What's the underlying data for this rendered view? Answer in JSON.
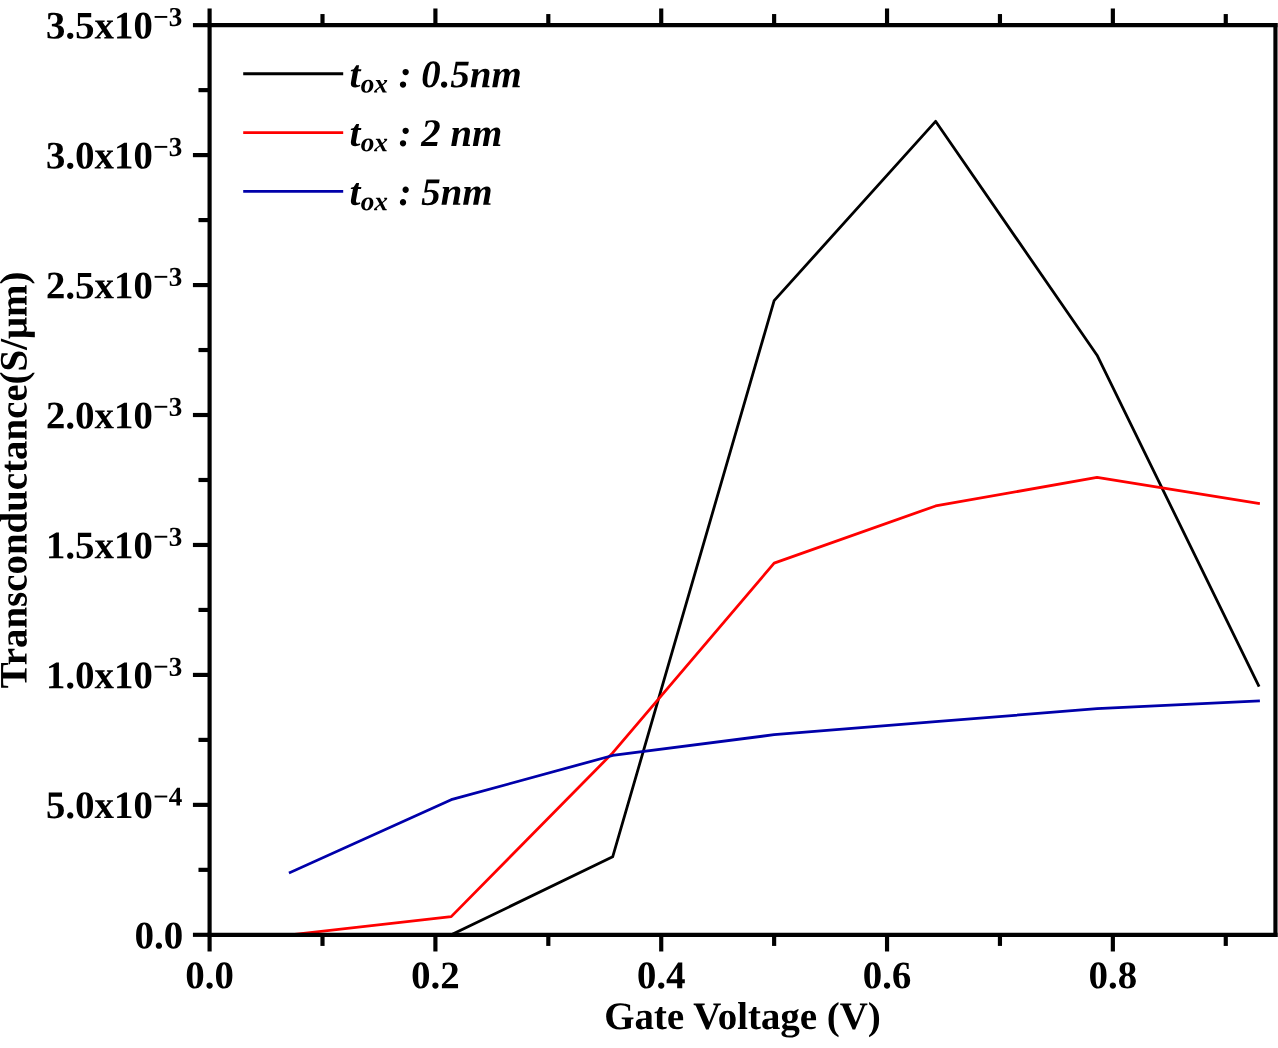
{
  "chart_data": {
    "type": "line",
    "xlabel": "Gate Voltage (V)",
    "ylabel": "Transconductance(S/μm)",
    "xlim": [
      0,
      0.944
    ],
    "xticks": [
      {
        "value": 0,
        "label": "0.0"
      },
      0.2,
      0.4,
      0.6,
      0.8
    ],
    "ylim": [
      0,
      0.0035
    ],
    "yticks": [
      {
        "value": 0,
        "label": "0.0"
      },
      {
        "value": 0.0005,
        "label": "5.0x10$^{−4}$"
      },
      {
        "value": 0.001,
        "label": "1.0x10$^{−3}$"
      },
      {
        "value": 0.0015,
        "label": "1.5x10$^{−3}$"
      },
      {
        "value": 0.002,
        "label": "2.0x10$^{−3}$"
      },
      {
        "value": 0.0025,
        "label": "2.5x10$^{−3}$"
      },
      {
        "value": 0.003,
        "label": "3.0x10$^{−3}$"
      },
      {
        "value": 0.0035,
        "label": "3.5x10$^{−3}$"
      }
    ],
    "x": [
      0.0714,
      0.214,
      0.357,
      0.5,
      0.643,
      0.786,
      0.929
    ],
    "series": [
      {
        "name": "t$_{ox}$ : 0.5nm",
        "color": "#000000",
        "values": [
          null,
          0,
          0.0003,
          0.00244,
          0.00313,
          0.00223,
          0.00096
        ]
      },
      {
        "name": "t$_{ox}$ : 2 nm",
        "color": "#ff0000",
        "values": [
          0,
          7e-05,
          0.0007,
          0.00143,
          0.00165,
          0.00176,
          0.00166
        ]
      },
      {
        "name": "t$_{ox}$ : 5nm",
        "color": "#0000aa",
        "values": [
          0.00024,
          0.00052,
          0.00069,
          0.00077,
          0.00082,
          0.00087,
          0.0009
        ]
      }
    ],
    "legend": "top left",
    "grid": false,
    "marker": "none",
    "line_style": "solid"
  }
}
